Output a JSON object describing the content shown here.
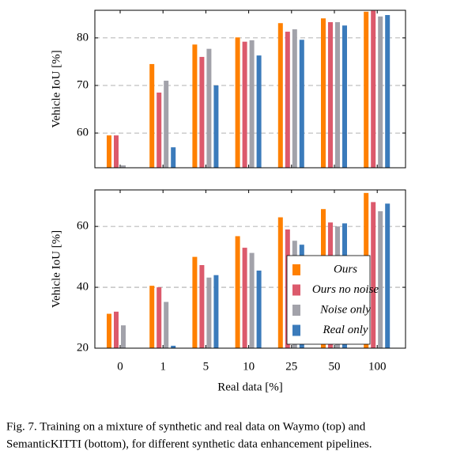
{
  "chart_data": [
    {
      "type": "bar",
      "ylabel": "Vehicle IoU [%]",
      "ylim": [
        52.7,
        85.8
      ],
      "yticks": [
        60,
        70,
        80
      ],
      "grid": true,
      "series": [
        {
          "name": "Ours",
          "color": "#ff8000",
          "values": [
            59.5,
            74.5,
            78.6,
            80.1,
            83.1,
            84.1,
            85.5
          ]
        },
        {
          "name": "Ours no noise",
          "color": "#dc5a6c",
          "values": [
            59.5,
            68.5,
            76,
            79.2,
            81.3,
            83.3,
            85.7
          ]
        },
        {
          "name": "Noise only",
          "color": "#a2a2aa",
          "values": [
            53.2,
            71,
            77.7,
            79.5,
            81.8,
            83.3,
            84.5
          ]
        },
        {
          "name": "Real only",
          "color": "#3b7bbb",
          "values": [
            null,
            57,
            70,
            76.3,
            79.6,
            82.6,
            84.8
          ]
        }
      ]
    },
    {
      "type": "bar",
      "ylabel": "Vehicle IoU [%]",
      "xlabel": "Real data [%]",
      "ylim": [
        20,
        72
      ],
      "yticks": [
        20,
        40,
        60
      ],
      "grid": true,
      "legend": "lower right",
      "categories": [
        "0",
        "1",
        "5",
        "10",
        "25",
        "50",
        "100"
      ],
      "series": [
        {
          "name": "Ours",
          "color": "#ff8000",
          "values": [
            31.3,
            40.5,
            50,
            56.8,
            63,
            65.7,
            71
          ]
        },
        {
          "name": "Ours no noise",
          "color": "#dc5a6c",
          "values": [
            32,
            40,
            47.3,
            53,
            59,
            61.3,
            68
          ]
        },
        {
          "name": "Noise only",
          "color": "#a2a2aa",
          "values": [
            27.5,
            35.2,
            43.2,
            51.3,
            55.3,
            60,
            65
          ]
        },
        {
          "name": "Real only",
          "color": "#3b7bbb",
          "values": [
            null,
            20.8,
            44,
            45.5,
            54,
            61,
            67.5
          ]
        }
      ]
    }
  ],
  "caption": [
    "Fig. 7.   Training on a mixture of synthetic and real data on Waymo (top) and",
    "SemanticKITTI (bottom), for different synthetic data enhancement pipelines."
  ]
}
